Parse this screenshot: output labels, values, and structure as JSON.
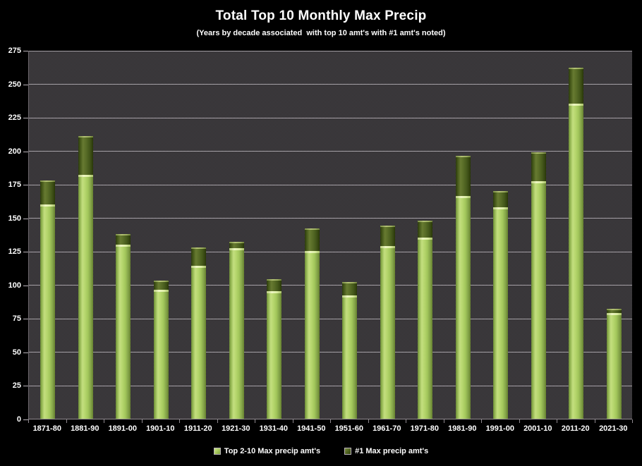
{
  "title": "Total Top 10 Monthly Max Precip",
  "subtitle": "(Years by decade associated  with top 10 amt's with #1 amt's noted)",
  "colors": {
    "background": "#000000",
    "plot_background": "#373537",
    "gridline": "#b9b3ba",
    "text": "#ffffff",
    "series_light": "#a9cb5e",
    "series_dark": "#4b5e1d"
  },
  "chart_data": {
    "type": "bar",
    "stacked": true,
    "title": "Total Top 10 Monthly Max Precip",
    "subtitle": "(Years by decade associated  with top 10 amt's with #1 amt's noted)",
    "categories": [
      "1871-80",
      "1881-90",
      "1891-00",
      "1901-10",
      "1911-20",
      "1921-30",
      "1931-40",
      "1941-50",
      "1951-60",
      "1961-70",
      "1971-80",
      "1981-90",
      "1991-00",
      "2001-10",
      "2011-20",
      "2021-30"
    ],
    "series": [
      {
        "name": "Top 2-10 Max precip amt's",
        "color": "#a9cb5e",
        "values": [
          160,
          182,
          130,
          96,
          114,
          127,
          95,
          125,
          92,
          129,
          135,
          166,
          158,
          177,
          235,
          79
        ]
      },
      {
        "name": "#1 Max precip amt's",
        "color": "#4b5e1d",
        "values": [
          18,
          29,
          8,
          7,
          14,
          5,
          9,
          17,
          10,
          15,
          13,
          30,
          12,
          22,
          27,
          3
        ]
      }
    ],
    "totals": [
      178,
      211,
      138,
      103,
      128,
      132,
      104,
      142,
      102,
      144,
      148,
      196,
      170,
      199,
      262,
      82
    ],
    "xlabel": "",
    "ylabel": "",
    "ylim": [
      0,
      275
    ],
    "ytick_step": 25,
    "grid": true,
    "legend_position": "bottom"
  }
}
